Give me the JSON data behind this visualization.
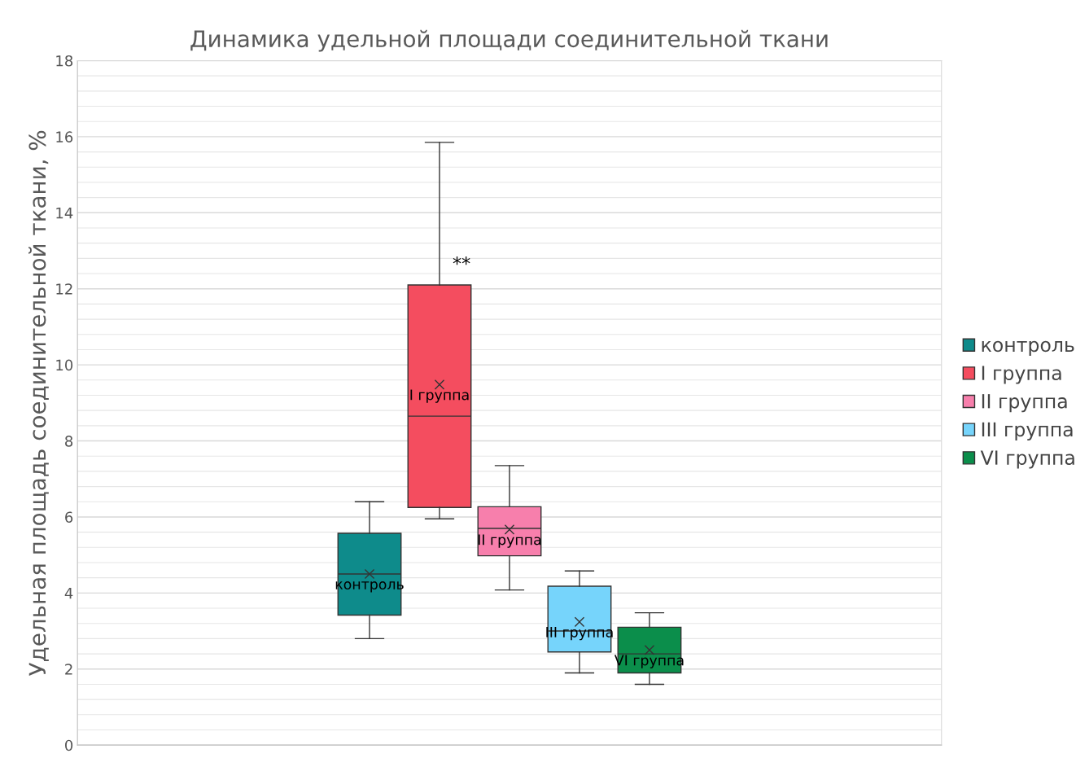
{
  "chart_data": {
    "type": "box",
    "title": "Динамика удельной площади соединительной ткани",
    "ylabel": "Удельная площадь соединительной ткани, %",
    "categories": [
      null
    ],
    "series": [
      {
        "name": "контроль",
        "color": "#0e8b8b",
        "boxes": [
          {
            "low": 2.8,
            "q1": 3.42,
            "median": 4.5,
            "q3": 5.57,
            "high": 6.4,
            "mean": 4.5
          }
        ]
      },
      {
        "name": "I группа",
        "color": "#f44d5f",
        "boxes": [
          {
            "low": 5.95,
            "q1": 6.25,
            "median": 8.65,
            "q3": 12.1,
            "high": 15.85,
            "mean": 9.48
          }
        ]
      },
      {
        "name": "II группа",
        "color": "#f77fac",
        "boxes": [
          {
            "low": 4.08,
            "q1": 4.98,
            "median": 5.7,
            "q3": 6.27,
            "high": 7.35,
            "mean": 5.67
          }
        ]
      },
      {
        "name": "III группа",
        "color": "#76d4fb",
        "boxes": [
          {
            "low": 1.9,
            "q1": 2.45,
            "median": 3.0,
            "q3": 4.18,
            "high": 4.58,
            "mean": 3.24
          }
        ]
      },
      {
        "name": "VI группа",
        "color": "#0b8e4b",
        "boxes": [
          {
            "low": 1.6,
            "q1": 1.9,
            "median": 2.4,
            "q3": 3.1,
            "high": 3.48,
            "mean": 2.5
          }
        ]
      }
    ],
    "annotations": [
      "**"
    ],
    "ylim": [
      0,
      18
    ],
    "yticks": [
      0,
      2,
      4,
      6,
      8,
      10,
      12,
      14,
      16,
      18
    ],
    "grid": "y",
    "legend": "right"
  }
}
